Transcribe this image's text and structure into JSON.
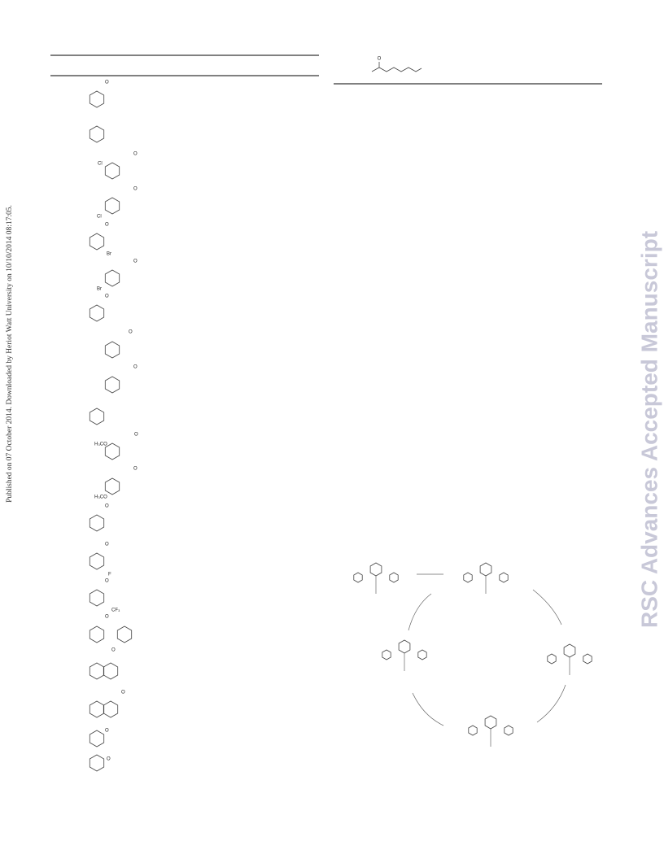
{
  "watermark_left": "Published on 07 October 2014. Downloaded by Heriot Watt University on 10/10/2014 08:17:05.",
  "watermark_right": "RSC Advances Accepted Manuscript",
  "structures": [
    {
      "labels": [
        "O"
      ]
    },
    {
      "labels": []
    },
    {
      "labels": [
        "Cl",
        "O"
      ]
    },
    {
      "labels": [
        "Cl",
        "O"
      ]
    },
    {
      "labels": [
        "O",
        "Br"
      ]
    },
    {
      "labels": [
        "Br",
        "O"
      ]
    },
    {
      "labels": [
        "O"
      ]
    },
    {
      "labels": [
        "O"
      ]
    },
    {
      "labels": [
        "O"
      ]
    },
    {
      "labels": []
    },
    {
      "labels": [
        "H₃CO",
        "O"
      ]
    },
    {
      "labels": [
        "H₃CO",
        "O"
      ]
    },
    {
      "labels": [
        "O"
      ]
    },
    {
      "labels": [
        "O",
        "F"
      ]
    },
    {
      "labels": [
        "O",
        "CF₃"
      ]
    },
    {
      "labels": [
        "O"
      ]
    },
    {
      "labels": [
        "O"
      ]
    },
    {
      "labels": [
        "O"
      ]
    },
    {
      "labels": [
        "O"
      ]
    },
    {
      "labels": [
        "O"
      ]
    }
  ],
  "top_right_structure": {
    "labels": [
      "O"
    ]
  }
}
